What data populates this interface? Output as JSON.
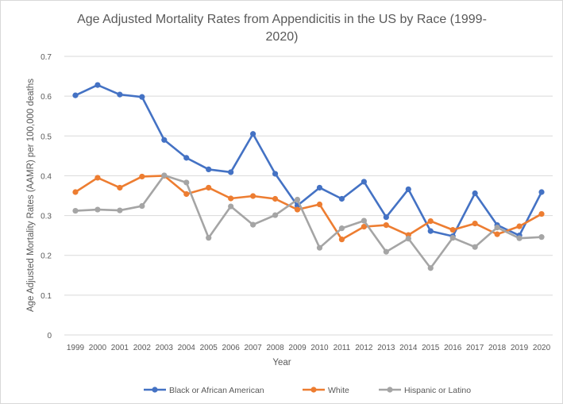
{
  "chart_data": {
    "type": "line",
    "title_lines": [
      "Age Adjusted Mortality Rates from Appendicitis in the US by Race  (1999-",
      "2020)"
    ],
    "xlabel": "Year",
    "ylabel": "Age Adjusted Mortality Rates (AAMR) per 100,000 deaths",
    "ylim": [
      0,
      0.7
    ],
    "yticks": [
      "0",
      "0.1",
      "0.2",
      "0.3",
      "0.4",
      "0.5",
      "0.6",
      "0.7"
    ],
    "grid": true,
    "legend_position": "bottom",
    "categories": [
      "1999",
      "2000",
      "2001",
      "2002",
      "2003",
      "2004",
      "2005",
      "2006",
      "2007",
      "2008",
      "2009",
      "2010",
      "2011",
      "2012",
      "2013",
      "2014",
      "2015",
      "2016",
      "2017",
      "2018",
      "2019",
      "2020"
    ],
    "series": [
      {
        "name": "Black or African American",
        "color": "#4472c4",
        "values": [
          0.602,
          0.628,
          0.604,
          0.598,
          0.49,
          0.445,
          0.416,
          0.409,
          0.505,
          0.405,
          0.325,
          0.37,
          0.342,
          0.385,
          0.296,
          0.366,
          0.261,
          0.248,
          0.356,
          0.276,
          0.25,
          0.359
        ]
      },
      {
        "name": "White",
        "color": "#ed7d31",
        "values": [
          0.359,
          0.395,
          0.37,
          0.398,
          0.4,
          0.354,
          0.37,
          0.343,
          0.349,
          0.342,
          0.315,
          0.328,
          0.24,
          0.272,
          0.276,
          0.251,
          0.286,
          0.264,
          0.28,
          0.253,
          0.273,
          0.304
        ]
      },
      {
        "name": "Hispanic or Latino",
        "color": "#a5a5a5",
        "values": [
          0.312,
          0.315,
          0.313,
          0.324,
          0.401,
          0.383,
          0.244,
          0.323,
          0.277,
          0.301,
          0.34,
          0.219,
          0.268,
          0.287,
          0.209,
          0.242,
          0.168,
          0.244,
          0.221,
          0.27,
          0.243,
          0.246
        ]
      }
    ]
  }
}
